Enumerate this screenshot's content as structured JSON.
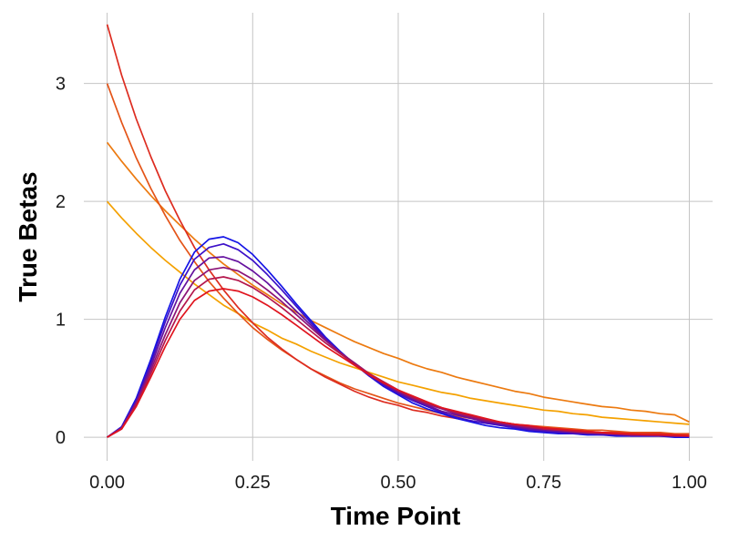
{
  "chart_data": {
    "type": "line",
    "title": "",
    "xlabel": "Time Point",
    "ylabel": "True Betas",
    "xlim": [
      -0.04,
      1.04
    ],
    "ylim": [
      -0.2,
      3.6
    ],
    "x_ticks": [
      0.0,
      0.25,
      0.5,
      0.75,
      1.0
    ],
    "x_tick_labels": [
      "0.00",
      "0.25",
      "0.50",
      "0.75",
      "1.00"
    ],
    "y_ticks": [
      0,
      1,
      2,
      3
    ],
    "y_tick_labels": [
      "0",
      "1",
      "2",
      "3"
    ],
    "grid": true,
    "legend": "none",
    "x": [
      0.0,
      0.025,
      0.05,
      0.075,
      0.1,
      0.125,
      0.15,
      0.175,
      0.2,
      0.225,
      0.25,
      0.275,
      0.3,
      0.325,
      0.35,
      0.375,
      0.4,
      0.425,
      0.45,
      0.475,
      0.5,
      0.525,
      0.55,
      0.575,
      0.6,
      0.625,
      0.65,
      0.675,
      0.7,
      0.725,
      0.75,
      0.775,
      0.8,
      0.825,
      0.85,
      0.875,
      0.9,
      0.925,
      0.95,
      0.975,
      1.0
    ],
    "series": [
      {
        "color": "#f4a100",
        "values": [
          2.0,
          1.86,
          1.73,
          1.61,
          1.5,
          1.4,
          1.3,
          1.21,
          1.12,
          1.05,
          0.97,
          0.91,
          0.84,
          0.79,
          0.73,
          0.68,
          0.63,
          0.59,
          0.55,
          0.51,
          0.47,
          0.44,
          0.41,
          0.38,
          0.36,
          0.33,
          0.31,
          0.29,
          0.27,
          0.25,
          0.23,
          0.22,
          0.2,
          0.19,
          0.17,
          0.16,
          0.15,
          0.14,
          0.13,
          0.12,
          0.11
        ]
      },
      {
        "color": "#ec7a10",
        "values": [
          2.5,
          2.34,
          2.19,
          2.05,
          1.92,
          1.8,
          1.68,
          1.57,
          1.47,
          1.38,
          1.29,
          1.21,
          1.13,
          1.06,
          0.99,
          0.93,
          0.87,
          0.81,
          0.76,
          0.71,
          0.67,
          0.62,
          0.58,
          0.55,
          0.51,
          0.48,
          0.45,
          0.42,
          0.39,
          0.37,
          0.34,
          0.32,
          0.3,
          0.28,
          0.26,
          0.25,
          0.23,
          0.22,
          0.2,
          0.19,
          0.13
        ]
      },
      {
        "color": "#e45418",
        "values": [
          3.0,
          2.67,
          2.37,
          2.11,
          1.88,
          1.67,
          1.49,
          1.32,
          1.18,
          1.05,
          0.93,
          0.83,
          0.74,
          0.66,
          0.58,
          0.52,
          0.46,
          0.41,
          0.37,
          0.33,
          0.29,
          0.26,
          0.23,
          0.2,
          0.18,
          0.16,
          0.14,
          0.13,
          0.11,
          0.1,
          0.09,
          0.08,
          0.07,
          0.06,
          0.06,
          0.05,
          0.04,
          0.04,
          0.04,
          0.03,
          0.03
        ]
      },
      {
        "color": "#dd2c20",
        "values": [
          3.5,
          3.07,
          2.7,
          2.38,
          2.09,
          1.84,
          1.61,
          1.42,
          1.25,
          1.1,
          0.97,
          0.85,
          0.75,
          0.66,
          0.58,
          0.51,
          0.45,
          0.39,
          0.34,
          0.3,
          0.27,
          0.23,
          0.21,
          0.18,
          0.16,
          0.14,
          0.12,
          0.11,
          0.09,
          0.08,
          0.07,
          0.06,
          0.06,
          0.05,
          0.04,
          0.04,
          0.03,
          0.03,
          0.03,
          0.02,
          0.02
        ]
      },
      {
        "color": "#1414e6",
        "values": [
          0.0,
          0.09,
          0.33,
          0.66,
          1.02,
          1.34,
          1.57,
          1.68,
          1.7,
          1.65,
          1.55,
          1.42,
          1.28,
          1.13,
          0.99,
          0.85,
          0.73,
          0.62,
          0.52,
          0.43,
          0.36,
          0.29,
          0.24,
          0.2,
          0.16,
          0.13,
          0.1,
          0.08,
          0.07,
          0.05,
          0.04,
          0.03,
          0.03,
          0.02,
          0.02,
          0.01,
          0.01,
          0.01,
          0.01,
          0.0,
          0.0
        ]
      },
      {
        "color": "#3c10c8",
        "values": [
          0.0,
          0.08,
          0.31,
          0.63,
          0.98,
          1.29,
          1.51,
          1.61,
          1.64,
          1.59,
          1.5,
          1.38,
          1.25,
          1.11,
          0.97,
          0.84,
          0.72,
          0.62,
          0.52,
          0.44,
          0.37,
          0.31,
          0.26,
          0.21,
          0.17,
          0.14,
          0.12,
          0.1,
          0.08,
          0.06,
          0.05,
          0.04,
          0.03,
          0.03,
          0.02,
          0.02,
          0.01,
          0.01,
          0.01,
          0.01,
          0.01
        ]
      },
      {
        "color": "#64109e",
        "values": [
          0.0,
          0.08,
          0.3,
          0.6,
          0.93,
          1.22,
          1.42,
          1.52,
          1.53,
          1.49,
          1.41,
          1.31,
          1.19,
          1.07,
          0.95,
          0.83,
          0.72,
          0.62,
          0.53,
          0.45,
          0.38,
          0.32,
          0.27,
          0.22,
          0.19,
          0.16,
          0.13,
          0.11,
          0.09,
          0.07,
          0.06,
          0.05,
          0.04,
          0.03,
          0.03,
          0.02,
          0.02,
          0.02,
          0.01,
          0.01,
          0.01
        ]
      },
      {
        "color": "#8c1478",
        "values": [
          0.0,
          0.08,
          0.29,
          0.57,
          0.87,
          1.14,
          1.33,
          1.42,
          1.44,
          1.41,
          1.34,
          1.25,
          1.15,
          1.04,
          0.93,
          0.82,
          0.72,
          0.63,
          0.54,
          0.46,
          0.39,
          0.33,
          0.28,
          0.24,
          0.2,
          0.17,
          0.14,
          0.12,
          0.1,
          0.08,
          0.07,
          0.06,
          0.05,
          0.04,
          0.03,
          0.03,
          0.02,
          0.02,
          0.02,
          0.01,
          0.01
        ]
      },
      {
        "color": "#b4164c",
        "values": [
          0.0,
          0.07,
          0.27,
          0.54,
          0.82,
          1.07,
          1.25,
          1.34,
          1.36,
          1.33,
          1.27,
          1.19,
          1.1,
          1.0,
          0.9,
          0.8,
          0.71,
          0.62,
          0.54,
          0.47,
          0.4,
          0.34,
          0.29,
          0.25,
          0.21,
          0.18,
          0.15,
          0.13,
          0.11,
          0.09,
          0.07,
          0.06,
          0.05,
          0.04,
          0.04,
          0.03,
          0.02,
          0.02,
          0.02,
          0.01,
          0.01
        ]
      },
      {
        "color": "#e0141e",
        "values": [
          0.0,
          0.07,
          0.26,
          0.51,
          0.77,
          1.0,
          1.16,
          1.24,
          1.26,
          1.24,
          1.19,
          1.12,
          1.04,
          0.95,
          0.86,
          0.77,
          0.69,
          0.61,
          0.53,
          0.46,
          0.4,
          0.35,
          0.3,
          0.25,
          0.22,
          0.19,
          0.16,
          0.13,
          0.11,
          0.1,
          0.08,
          0.07,
          0.06,
          0.05,
          0.04,
          0.03,
          0.03,
          0.02,
          0.02,
          0.02,
          0.01
        ]
      }
    ]
  }
}
